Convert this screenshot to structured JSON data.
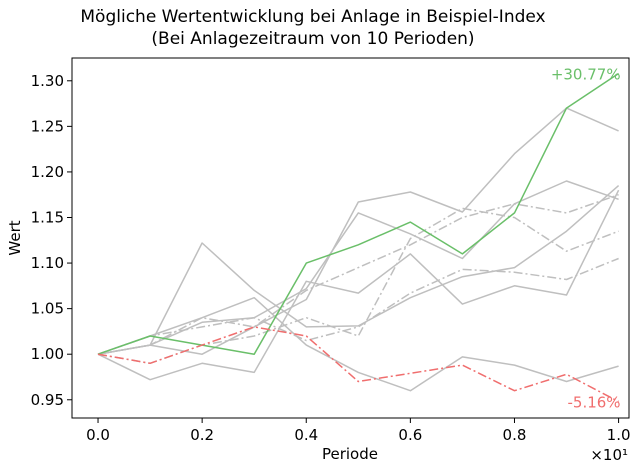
{
  "chart_data": {
    "type": "line",
    "title": "Mögliche Wertentwicklung bei Anlage in Beispiel-Index",
    "subtitle": "(Bei Anlagezeitraum von 10 Perioden)",
    "xlabel": "Periode",
    "ylabel": "Wert",
    "x_offset_label": "×10¹",
    "xlim": [
      -0.05,
      1.02
    ],
    "ylim": [
      0.93,
      1.325
    ],
    "xticks": [
      "0.0",
      "0.2",
      "0.4",
      "0.6",
      "0.8",
      "1.0"
    ],
    "xtick_values": [
      0.0,
      0.2,
      0.4,
      0.6,
      0.8,
      1.0
    ],
    "yticks": [
      "0.95",
      "1.00",
      "1.05",
      "1.10",
      "1.15",
      "1.20",
      "1.25",
      "1.30"
    ],
    "ytick_values": [
      0.95,
      1.0,
      1.05,
      1.1,
      1.15,
      1.2,
      1.25,
      1.3
    ],
    "grid": false,
    "x": [
      0.0,
      0.1,
      0.2,
      0.3,
      0.4,
      0.5,
      0.6,
      0.7,
      0.8,
      0.9,
      1.0
    ],
    "colors": {
      "best": "#6abf69",
      "worst": "#f06e6e",
      "other": "#bfbfbf"
    },
    "series": [
      {
        "role": "best",
        "style": "solid",
        "values": [
          1.0,
          1.02,
          1.01,
          1.0,
          1.1,
          1.12,
          1.145,
          1.11,
          1.155,
          1.27,
          1.308
        ]
      },
      {
        "role": "worst",
        "style": "dashdot",
        "values": [
          1.0,
          0.99,
          1.01,
          1.03,
          1.02,
          0.97,
          0.979,
          0.988,
          0.96,
          0.978,
          0.948
        ]
      },
      {
        "role": "other",
        "style": "solid",
        "values": [
          1.0,
          1.01,
          1.122,
          1.07,
          1.03,
          1.031,
          1.062,
          1.085,
          1.095,
          1.135,
          1.185
        ]
      },
      {
        "role": "other",
        "style": "solid",
        "values": [
          1.0,
          0.972,
          0.99,
          0.98,
          1.08,
          1.067,
          1.11,
          1.055,
          1.075,
          1.065,
          1.18
        ]
      },
      {
        "role": "other",
        "style": "solid",
        "values": [
          1.0,
          1.02,
          1.04,
          1.062,
          1.01,
          0.98,
          0.96,
          0.997,
          0.988,
          0.97,
          0.987
        ]
      },
      {
        "role": "other",
        "style": "solid",
        "values": [
          1.0,
          1.01,
          1.0,
          1.03,
          1.06,
          1.167,
          1.178,
          1.156,
          1.22,
          1.27,
          1.245
        ]
      },
      {
        "role": "other",
        "style": "solid",
        "values": [
          1.0,
          1.01,
          1.035,
          1.04,
          1.072,
          1.155,
          1.132,
          1.105,
          1.165,
          1.19,
          1.17
        ]
      },
      {
        "role": "other",
        "style": "dashdot",
        "values": [
          1.0,
          1.02,
          1.03,
          1.04,
          1.015,
          1.03,
          1.067,
          1.093,
          1.09,
          1.082,
          1.105
        ]
      },
      {
        "role": "other",
        "style": "dashdot",
        "values": [
          1.0,
          1.01,
          1.04,
          1.03,
          1.07,
          1.095,
          1.12,
          1.15,
          1.165,
          1.155,
          1.175
        ]
      },
      {
        "role": "other",
        "style": "dashdot",
        "values": [
          1.0,
          0.99,
          1.01,
          1.02,
          1.04,
          1.02,
          1.127,
          1.16,
          1.15,
          1.113,
          1.135
        ]
      }
    ],
    "annotations": [
      {
        "text": "+30.77%",
        "role": "best",
        "x": 1.0,
        "y": 1.308
      },
      {
        "text": "-5.16%",
        "role": "worst",
        "x": 1.0,
        "y": 0.948
      }
    ]
  }
}
